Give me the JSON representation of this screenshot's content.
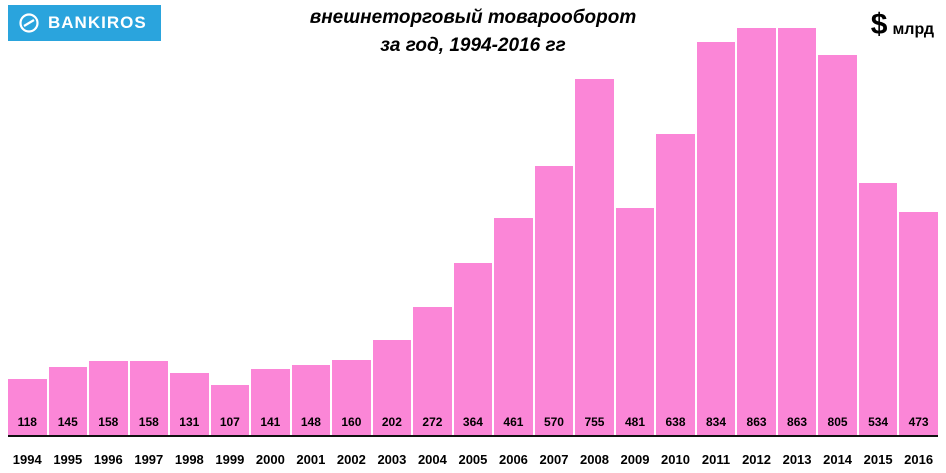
{
  "header": {
    "logo_text": "BANKIROS",
    "title_line1": "внешнеторговый товарооборот",
    "title_line2": "за год, 1994-2016 гг",
    "unit_symbol": "$",
    "unit_label": "млрд"
  },
  "colors": {
    "bar": "#fb86d7",
    "logo_bg": "#2aa4dd",
    "axis": "#111111"
  },
  "chart_data": {
    "type": "bar",
    "title": "внешнеторговый товарооборот за год, 1994-2016 гг",
    "xlabel": "",
    "ylabel": "$ млрд",
    "ylim": [
      0,
      863
    ],
    "grid": false,
    "legend": false,
    "categories": [
      "1994",
      "1995",
      "1996",
      "1997",
      "1998",
      "1999",
      "2000",
      "2001",
      "2002",
      "2003",
      "2004",
      "2005",
      "2006",
      "2007",
      "2008",
      "2009",
      "2010",
      "2011",
      "2012",
      "2013",
      "2014",
      "2015",
      "2016"
    ],
    "values": [
      118,
      145,
      158,
      158,
      131,
      107,
      141,
      148,
      160,
      202,
      272,
      364,
      461,
      570,
      755,
      481,
      638,
      834,
      863,
      863,
      805,
      534,
      473
    ]
  }
}
